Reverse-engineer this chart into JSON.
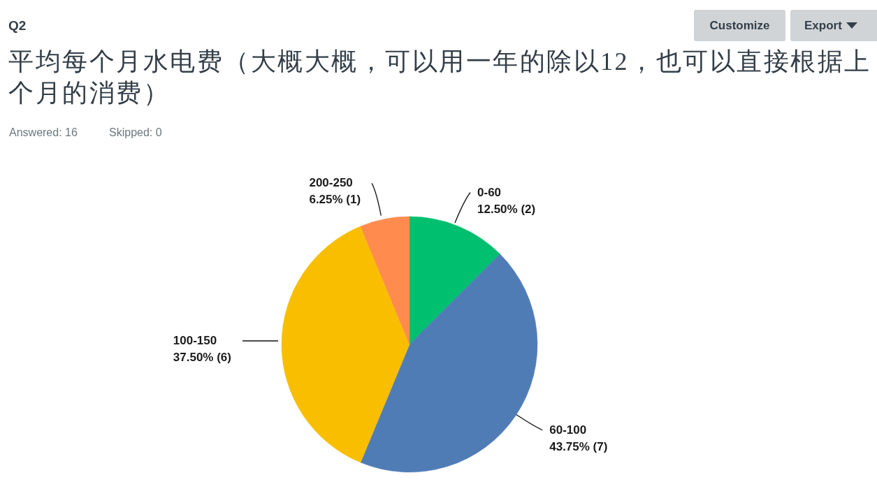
{
  "chart_data": {
    "type": "pie",
    "title": "平均每个月水电费（大概大概，可以用一年的除以12，也可以直接根据上个月的消费）",
    "annotations": [
      "Q2",
      "Answered: 16",
      "Skipped: 0",
      "Customize",
      "Export"
    ],
    "categories": [
      "0-60",
      "60-100",
      "100-150",
      "200-250"
    ],
    "values": [
      12.5,
      43.75,
      37.5,
      6.25
    ],
    "colors": [
      "#00bf6f",
      "#507cb6",
      "#f9be00",
      "#ff8b4f"
    ],
    "value_labels": [
      "12.50% (2)",
      "43.75% (7)",
      "37.50% (6)",
      "6.25% (1)"
    ]
  }
}
